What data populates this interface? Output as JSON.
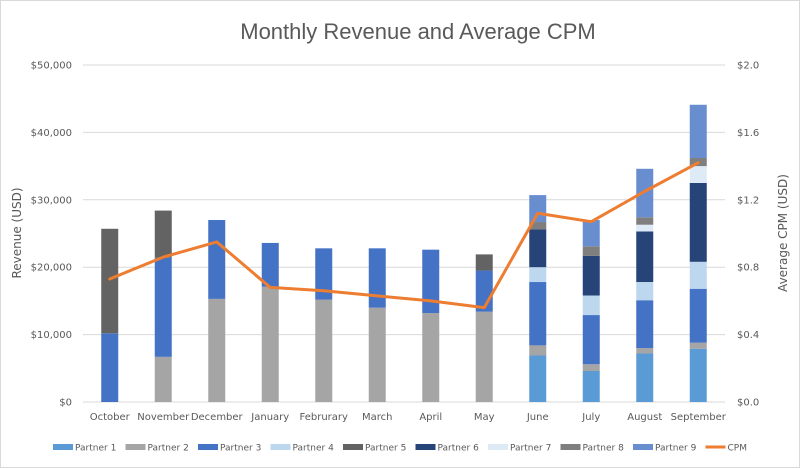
{
  "chart_data": {
    "type": "bar",
    "stacked": true,
    "title": "Monthly Revenue and Average CPM",
    "xlabel": "",
    "ylabel": "Revenue (USD)",
    "y2label": "Average CPM (USD)",
    "ylim": [
      0,
      50000
    ],
    "y2lim": [
      0,
      2.0
    ],
    "yticks": [
      "$0",
      "$10,000",
      "$20,000",
      "$30,000",
      "$40,000",
      "$50,000"
    ],
    "y2ticks": [
      "$0.0",
      "$0.4",
      "$0.8",
      "$1.2",
      "$1.6",
      "$2.0"
    ],
    "grid": true,
    "legend_position": "bottom",
    "categories": [
      "October",
      "November",
      "December",
      "January",
      "Februrary",
      "March",
      "April",
      "May",
      "June",
      "July",
      "August",
      "September"
    ],
    "series": [
      {
        "name": "Partner 1",
        "color": "#5b9bd5",
        "values": [
          0,
          0,
          0,
          0,
          0,
          0,
          0,
          0,
          6900,
          4600,
          7200,
          7900
        ]
      },
      {
        "name": "Partner 2",
        "color": "#a5a5a5",
        "values": [
          0,
          6700,
          15300,
          17100,
          15200,
          14000,
          13200,
          13400,
          1500,
          1000,
          800,
          900
        ]
      },
      {
        "name": "Partner 3",
        "color": "#4472c4",
        "values": [
          10200,
          14700,
          11700,
          6500,
          7600,
          8800,
          9400,
          6100,
          9400,
          7300,
          7100,
          8000
        ]
      },
      {
        "name": "Partner 4",
        "color": "#bdd7ee",
        "values": [
          0,
          0,
          0,
          0,
          0,
          0,
          0,
          0,
          2200,
          2900,
          2700,
          4000
        ]
      },
      {
        "name": "Partner 5",
        "color": "#636363",
        "values": [
          15500,
          7000,
          0,
          0,
          0,
          0,
          0,
          2400,
          0,
          0,
          0,
          0
        ]
      },
      {
        "name": "Partner 6",
        "color": "#264478",
        "values": [
          0,
          0,
          0,
          0,
          0,
          0,
          0,
          0,
          5600,
          5900,
          7500,
          11700
        ]
      },
      {
        "name": "Partner 7",
        "color": "#deebf7",
        "values": [
          0,
          0,
          0,
          0,
          0,
          0,
          0,
          0,
          0,
          0,
          1000,
          2500
        ]
      },
      {
        "name": "Partner 8",
        "color": "#7f7f7f",
        "values": [
          0,
          0,
          0,
          0,
          0,
          0,
          0,
          0,
          1100,
          1400,
          1100,
          1200
        ]
      },
      {
        "name": "Partner 9",
        "color": "#698ed0",
        "values": [
          0,
          0,
          0,
          0,
          0,
          0,
          0,
          0,
          4000,
          3900,
          7200,
          7900
        ]
      }
    ],
    "line_series": {
      "name": "CPM",
      "color": "#ed7d31",
      "axis": "secondary",
      "values": [
        0.73,
        0.86,
        0.95,
        0.68,
        0.66,
        0.63,
        0.6,
        0.56,
        1.12,
        1.07,
        1.25,
        1.42
      ]
    }
  }
}
